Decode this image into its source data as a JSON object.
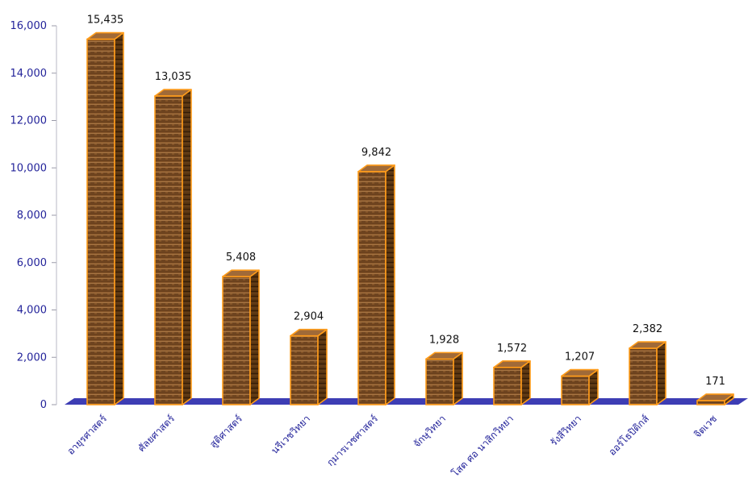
{
  "chart_data": {
    "type": "bar",
    "title": "",
    "xlabel": "",
    "ylabel": "",
    "ylim": [
      0,
      16000
    ],
    "yticks": [
      0,
      2000,
      4000,
      6000,
      8000,
      10000,
      12000,
      14000,
      16000
    ],
    "ytick_labels": [
      "0",
      "2,000",
      "4,000",
      "6,000",
      "8,000",
      "10,000",
      "12,000",
      "14,000",
      "16,000"
    ],
    "categories": [
      "อายุรศาสตร์",
      "ศัลยศาสตร์",
      "สูติศาสตร์",
      "นรีเวชวิทยา",
      "กุมารเวชศาสตร์",
      "จักษุวิทยา",
      "โสต ศอ นาสิกวิทยา",
      "รังสีวิทยา",
      "ออร์โธปิดิกส์",
      "จิตเวช"
    ],
    "values": [
      15435,
      13035,
      5408,
      2904,
      9842,
      1928,
      1572,
      1207,
      2382,
      171
    ],
    "value_labels": [
      "15,435",
      "13,035",
      "5,408",
      "2,904",
      "9,842",
      "1,928",
      "1,572",
      "1,207",
      "2,382",
      "171"
    ],
    "grid": false,
    "legend": "none",
    "style": "3d-bar",
    "colors": {
      "bar_front": "#8a5a30",
      "bar_side": "#5a3416",
      "bar_top": "#a06a38",
      "bar_edge": "#ff9c1a",
      "floor": "#3d3db4",
      "axis_text": "#23239a"
    }
  }
}
